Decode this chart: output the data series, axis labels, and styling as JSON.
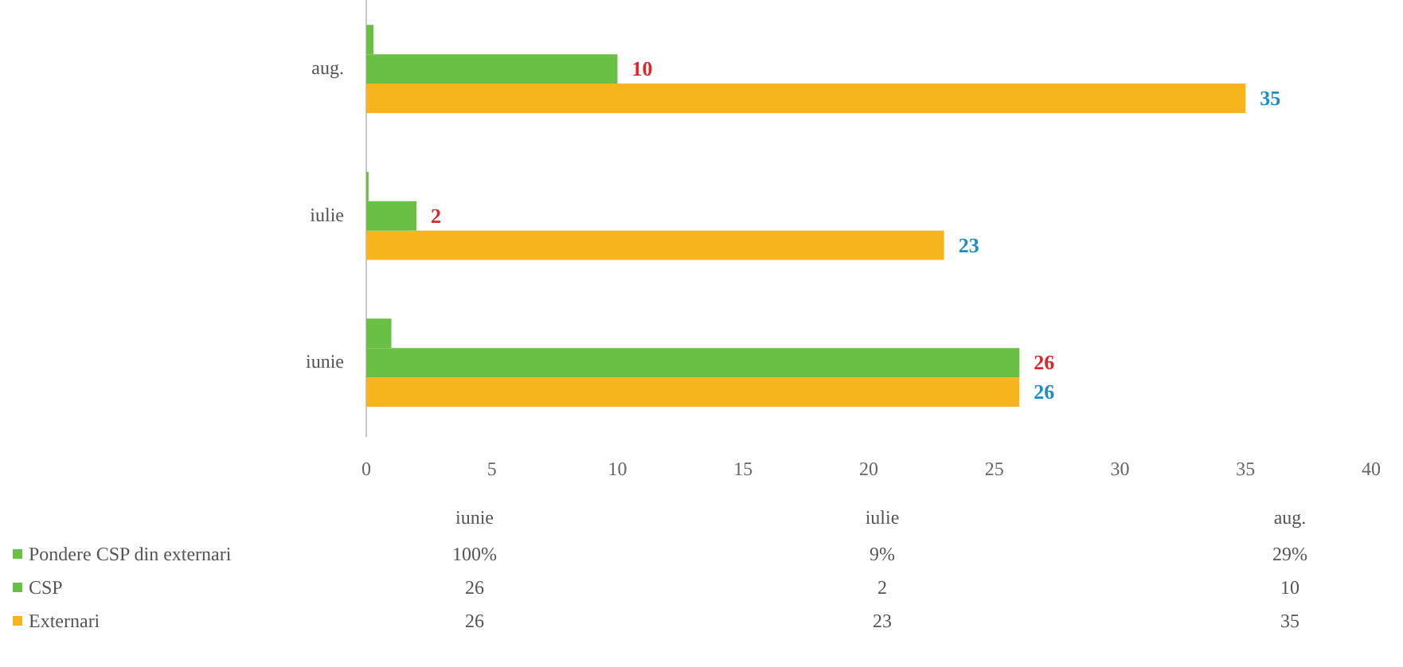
{
  "chart_data": [
    {
      "type": "bar",
      "orientation": "horizontal",
      "categories": [
        "aug.",
        "iulie",
        "iunie"
      ],
      "series": [
        {
          "name": "Pondere CSP din externari",
          "color": "#6abf45",
          "values": [
            0.29,
            0.09,
            1
          ]
        },
        {
          "name": "CSP",
          "color": "#6abf45",
          "values": [
            10,
            2,
            26
          ],
          "value_labels": [
            "10",
            "2",
            "26"
          ]
        },
        {
          "name": "Externari",
          "color": "#f7b41c",
          "values": [
            35,
            23,
            26
          ],
          "value_labels": [
            "35",
            "23",
            "26"
          ]
        }
      ],
      "xlim": [
        0,
        40
      ],
      "xticks": [
        0,
        5,
        10,
        15,
        20,
        25,
        30,
        35,
        40
      ],
      "legend": "bottom left"
    },
    {
      "type": "other",
      "categories": [
        "iunie",
        "iulie",
        "aug."
      ],
      "series": [
        {
          "values": [
            100,
            9,
            29
          ],
          "value_labels": [
            "100%",
            "9%",
            "29%"
          ]
        },
        {
          "values": [
            26,
            2,
            10
          ]
        },
        {
          "values": [
            26,
            23,
            35
          ]
        }
      ],
      "data_labels": true
    }
  ]
}
